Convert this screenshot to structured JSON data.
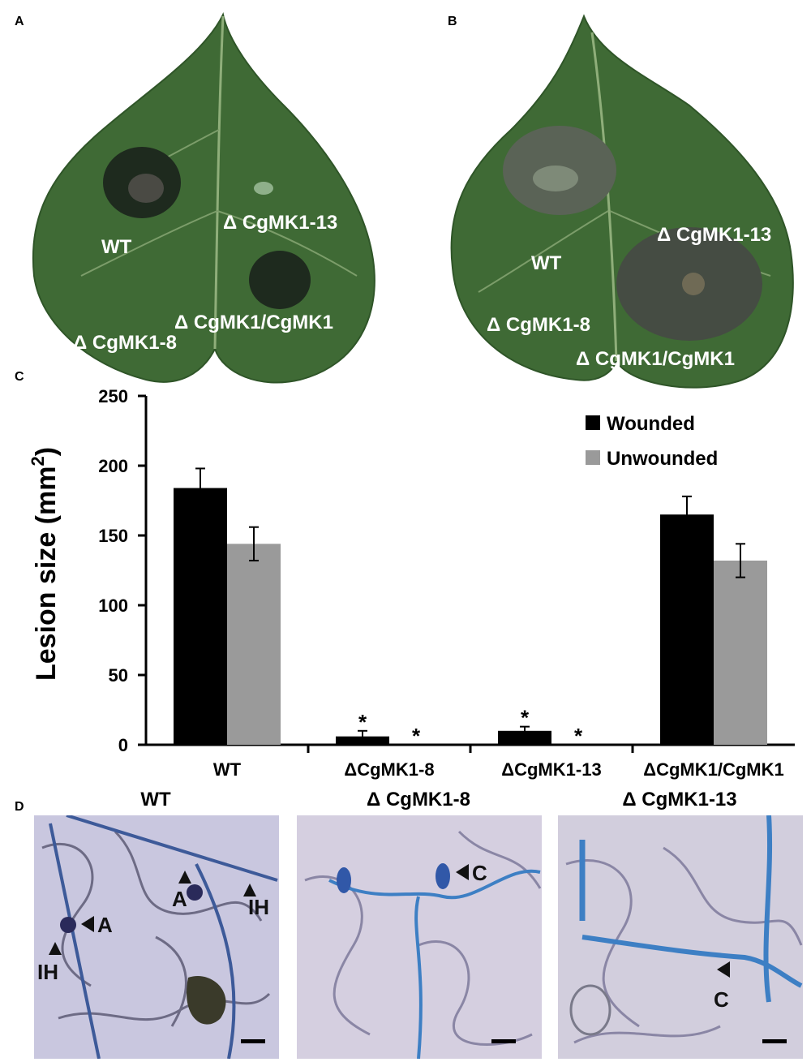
{
  "panels": {
    "a": {
      "letter": "A",
      "labels": {
        "wt": "WT",
        "mk13": "Δ CgMK1-13",
        "mk8": "Δ CgMK1-8",
        "comp": "Δ CgMK1/CgMK1"
      }
    },
    "b": {
      "letter": "B",
      "labels": {
        "wt": "WT",
        "mk13": "Δ CgMK1-13",
        "mk8": "Δ CgMK1-8",
        "comp": "Δ CgMK1/CgMK1"
      }
    },
    "c": {
      "letter": "C"
    },
    "d": {
      "letter": "D",
      "images": [
        {
          "title": "WT",
          "markers": [
            "A",
            "A",
            "IH",
            "IH"
          ]
        },
        {
          "title": "Δ CgMK1-8",
          "markers": [
            "C"
          ]
        },
        {
          "title": "Δ CgMK1-13",
          "markers": [
            "C"
          ]
        }
      ]
    }
  },
  "colors": {
    "wounded": "#000000",
    "unwounded": "#9a9a9a",
    "leaf": "#3f6a35",
    "micro_bg": "#c9c7df",
    "hyphae": "#3d7fc4"
  },
  "chart_data": {
    "type": "bar",
    "categories": [
      "WT",
      "ΔCgMK1-8",
      "ΔCgMK1-13",
      "ΔCgMK1/CgMK1"
    ],
    "series": [
      {
        "name": "Wounded",
        "values": [
          184,
          6,
          10,
          165
        ],
        "errors": [
          14,
          4,
          3,
          13
        ],
        "significant": [
          false,
          true,
          true,
          false
        ]
      },
      {
        "name": "Unwounded",
        "values": [
          144,
          0,
          0,
          132
        ],
        "errors": [
          12,
          0,
          0,
          12
        ],
        "significant": [
          false,
          true,
          true,
          false
        ]
      }
    ],
    "ylabel": "Lesion size  (mm²)",
    "ylabel_main": "Lesion size  (mm",
    "ylabel_sup": "2",
    "ylabel_close": ")",
    "yticks": [
      0,
      50,
      100,
      150,
      200,
      250
    ],
    "ylim": [
      0,
      250
    ],
    "significance_marker": "*",
    "legend_position": "top-right",
    "grid": false
  }
}
